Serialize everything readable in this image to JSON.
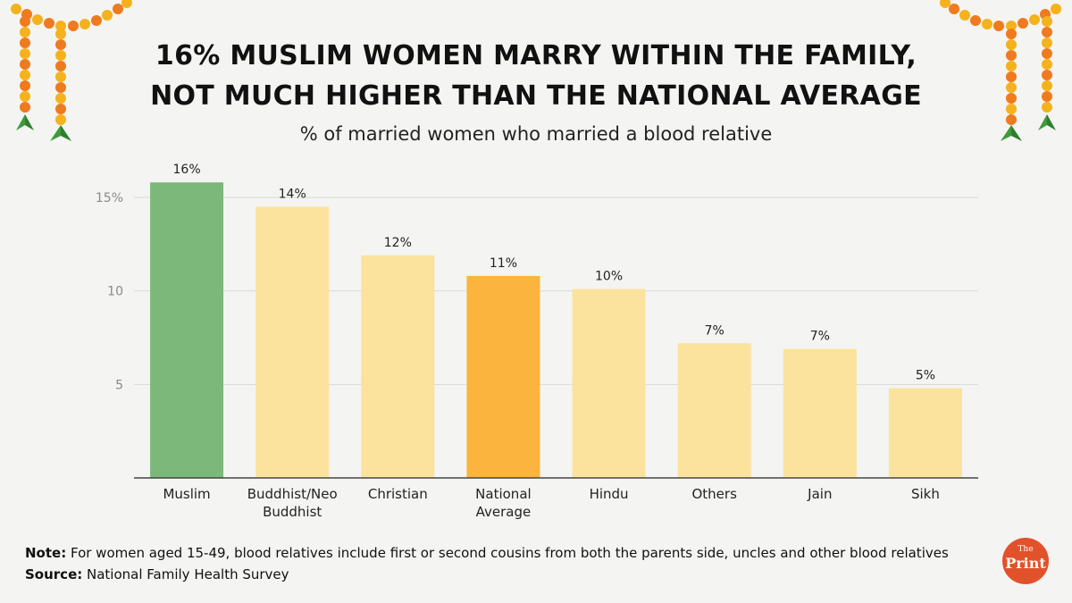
{
  "header": {
    "title_line1": "16% MUSLIM WOMEN MARRY WITHIN THE FAMILY,",
    "title_line2": "NOT MUCH HIGHER THAN THE NATIONAL AVERAGE",
    "subtitle": "% of married women who married a blood relative"
  },
  "chart_data": {
    "type": "bar",
    "title": "16% MUSLIM WOMEN MARRY WITHIN THE FAMILY, NOT MUCH HIGHER THAN THE NATIONAL AVERAGE",
    "subtitle": "% of married women who married a blood relative",
    "categories": [
      [
        "Muslim"
      ],
      [
        "Buddhist/Neo",
        "Buddhist"
      ],
      [
        "Christian"
      ],
      [
        "National",
        "Average"
      ],
      [
        "Hindu"
      ],
      [
        "Others"
      ],
      [
        "Jain"
      ],
      [
        "Sikh"
      ]
    ],
    "values": [
      15.8,
      14.5,
      11.9,
      10.8,
      10.1,
      7.2,
      6.9,
      4.8
    ],
    "data_labels": [
      "16%",
      "14%",
      "12%",
      "11%",
      "10%",
      "7%",
      "7%",
      "5%"
    ],
    "bar_colors": [
      "#7cb87a",
      "#fbe29d",
      "#fbe29d",
      "#fbb43e",
      "#fbe29d",
      "#fbe29d",
      "#fbe29d",
      "#fbe29d"
    ],
    "yticks": [
      {
        "value": 5,
        "label": "5"
      },
      {
        "value": 10,
        "label": "10"
      },
      {
        "value": 15,
        "label": "15%"
      }
    ],
    "ylim": [
      0,
      16
    ],
    "xlabel": "",
    "ylabel": "",
    "grid": true
  },
  "footer": {
    "note_label": "Note:",
    "note_text": " For women aged 15-49, blood relatives include first or second cousins from both the parents side, uncles and other blood relatives",
    "source_label": "Source:",
    "source_text": " National Family Health Survey",
    "logo_the": "The",
    "logo_print": "Print"
  },
  "colors": {
    "background": "#f4f4f2",
    "muslim_bar": "#7cb87a",
    "highlight_bar": "#fbb43e",
    "other_bar": "#fbe29d",
    "logo": "#e2522a",
    "marigold_orange": "#f07a1e",
    "marigold_yellow": "#f6b21c",
    "leaf": "#3f9a3a"
  }
}
